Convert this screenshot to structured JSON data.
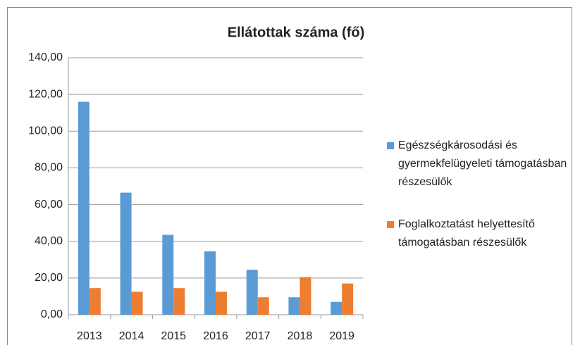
{
  "chart_data": {
    "type": "bar",
    "title": "Ellátottak száma (fő)",
    "categories": [
      "2013",
      "2014",
      "2015",
      "2016",
      "2017",
      "2018",
      "2019"
    ],
    "series": [
      {
        "name": "Egészségkárosodási és gyermekfelügyeleti támogatásban részesülők",
        "color": "#5b9bd5",
        "values": [
          116,
          66.5,
          43.5,
          34.5,
          24.5,
          9.5,
          7
        ]
      },
      {
        "name": "Foglalkoztatást helyettesítő támogatásban részesülők",
        "color": "#ed7d31",
        "values": [
          14.5,
          12.5,
          14.5,
          12.5,
          9.5,
          20.5,
          17
        ]
      }
    ],
    "ylim": [
      0,
      140
    ],
    "yticks": [
      {
        "value": 0,
        "label": "0,00"
      },
      {
        "value": 20,
        "label": "20,00"
      },
      {
        "value": 40,
        "label": "40,00"
      },
      {
        "value": 60,
        "label": "60,00"
      },
      {
        "value": 80,
        "label": "80,00"
      },
      {
        "value": 100,
        "label": "100,00"
      },
      {
        "value": 120,
        "label": "120,00"
      },
      {
        "value": 140,
        "label": "140,00"
      }
    ],
    "grid": true,
    "legend": "right"
  }
}
